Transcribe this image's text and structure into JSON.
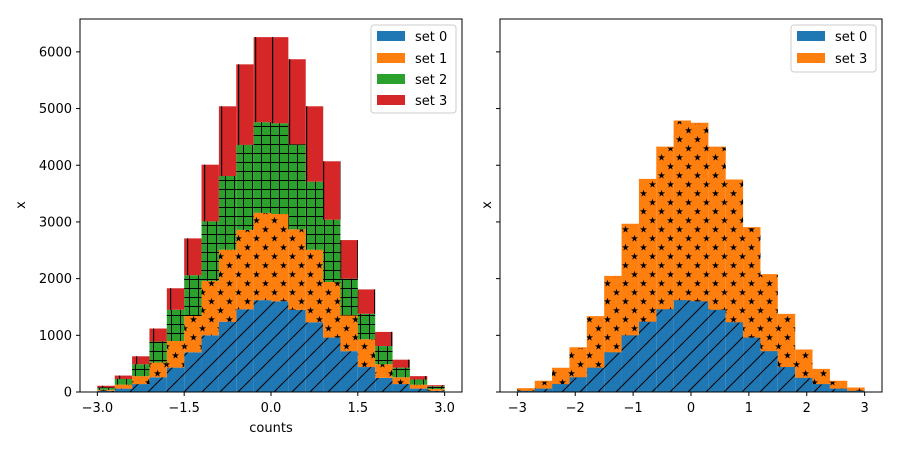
{
  "chart_data": [
    {
      "type": "bar",
      "stacked": true,
      "histogram": true,
      "xlabel": "counts",
      "ylabel": "x",
      "xlim": [
        -3.3,
        3.3
      ],
      "ylim": [
        0,
        6580
      ],
      "xticks": [
        -3.0,
        -1.5,
        0.0,
        1.5,
        3.0
      ],
      "xtick_labels": [
        "−3.0",
        "−1.5",
        "0.0",
        "1.5",
        "3.0"
      ],
      "yticks": [
        0,
        1000,
        2000,
        3000,
        4000,
        5000,
        6000
      ],
      "ytick_labels": [
        "0",
        "1000",
        "2000",
        "3000",
        "4000",
        "5000",
        "6000"
      ],
      "bin_edges": [
        -3.0,
        -2.7,
        -2.4,
        -2.1,
        -1.8,
        -1.5,
        -1.2,
        -0.9,
        -0.6,
        -0.3,
        0.0,
        0.3,
        0.6,
        0.9,
        1.2,
        1.5,
        1.8,
        2.1,
        2.4,
        2.7,
        3.0
      ],
      "legend_position": "top-right",
      "series": [
        {
          "name": "set 0",
          "color": "#1f77b4",
          "hatch": "diagonal",
          "values": [
            20,
            60,
            140,
            260,
            430,
            700,
            1000,
            1240,
            1460,
            1620,
            1600,
            1450,
            1230,
            960,
            720,
            440,
            250,
            140,
            60,
            20
          ]
        },
        {
          "name": "set 1",
          "color": "#ff7f0e",
          "hatch": "star",
          "values": [
            20,
            70,
            140,
            260,
            470,
            640,
            960,
            1270,
            1400,
            1540,
            1540,
            1420,
            1280,
            980,
            630,
            490,
            240,
            120,
            70,
            30
          ]
        },
        {
          "name": "set 2",
          "color": "#2ca02c",
          "hatch": "grid",
          "values": [
            40,
            100,
            210,
            370,
            550,
            720,
            1050,
            1300,
            1500,
            1600,
            1600,
            1500,
            1200,
            1100,
            650,
            450,
            320,
            170,
            90,
            50
          ]
        },
        {
          "name": "set 3",
          "color": "#d62728",
          "hatch": "vertical",
          "values": [
            30,
            60,
            140,
            230,
            380,
            650,
            1000,
            1230,
            1420,
            1500,
            1520,
            1500,
            1330,
            1030,
            680,
            430,
            250,
            140,
            60,
            20
          ]
        }
      ]
    },
    {
      "type": "bar",
      "stacked": true,
      "histogram": true,
      "xlabel": "",
      "ylabel": "x",
      "xlim": [
        -3.3,
        3.3
      ],
      "ylim": [
        0,
        6580
      ],
      "xticks": [
        -3,
        -2,
        -1,
        0,
        1,
        2,
        3
      ],
      "xtick_labels": [
        "−3",
        "−2",
        "−1",
        "0",
        "1",
        "2",
        "3"
      ],
      "yticks": [
        0,
        1000,
        2000,
        3000,
        4000,
        5000,
        6000
      ],
      "ytick_labels": [],
      "bin_edges": [
        -3.0,
        -2.7,
        -2.4,
        -2.1,
        -1.8,
        -1.5,
        -1.2,
        -0.9,
        -0.6,
        -0.3,
        0.0,
        0.3,
        0.6,
        0.9,
        1.2,
        1.5,
        1.8,
        2.1,
        2.4,
        2.7,
        3.0
      ],
      "legend_position": "top-right",
      "series": [
        {
          "name": "set 0",
          "color": "#1f77b4",
          "hatch": "diagonal",
          "step": true,
          "values": [
            20,
            60,
            140,
            260,
            430,
            700,
            1000,
            1240,
            1460,
            1620,
            1600,
            1450,
            1230,
            960,
            720,
            440,
            250,
            140,
            60,
            20
          ]
        },
        {
          "name": "set 3",
          "color": "#ff7f0e",
          "hatch": "star",
          "step": true,
          "values": [
            40,
            130,
            280,
            520,
            900,
            1340,
            1960,
            2510,
            2860,
            3160,
            3140,
            2870,
            2510,
            1940,
            1350,
            930,
            490,
            260,
            130,
            50
          ]
        }
      ]
    }
  ]
}
